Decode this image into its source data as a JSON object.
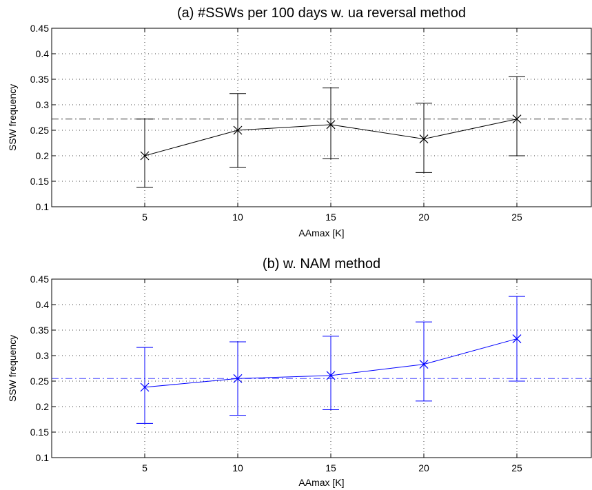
{
  "chart_data": [
    {
      "type": "line",
      "title": "(a) #SSWs per 100 days w. ua reversal method",
      "xlabel": "AAmax [K]",
      "ylabel": "SSW frequency",
      "xlim": [
        0,
        29
      ],
      "ylim": [
        0.1,
        0.45
      ],
      "xticks": [
        5,
        10,
        15,
        20,
        25
      ],
      "yticks": [
        0.1,
        0.15,
        0.2,
        0.25,
        0.3,
        0.35,
        0.4,
        0.45
      ],
      "xtick_labels": [
        "5",
        "10",
        "15",
        "20",
        "25"
      ],
      "ytick_labels": [
        "0.1",
        "0.15",
        "0.2",
        "0.25",
        "0.3",
        "0.35",
        "0.4",
        "0.45"
      ],
      "grid": true,
      "color": "#000000",
      "x": [
        5,
        10,
        15,
        20,
        25
      ],
      "y": [
        0.2,
        0.25,
        0.261,
        0.233,
        0.272
      ],
      "err_low": [
        0.138,
        0.177,
        0.194,
        0.167,
        0.2
      ],
      "err_high": [
        0.272,
        0.322,
        0.333,
        0.303,
        0.355
      ],
      "reference_line": 0.272,
      "marker": "x"
    },
    {
      "type": "line",
      "title": "(b) w. NAM method",
      "xlabel": "AAmax [K]",
      "ylabel": "SSW frequency",
      "xlim": [
        0,
        29
      ],
      "ylim": [
        0.1,
        0.45
      ],
      "xticks": [
        5,
        10,
        15,
        20,
        25
      ],
      "yticks": [
        0.1,
        0.15,
        0.2,
        0.25,
        0.3,
        0.35,
        0.4,
        0.45
      ],
      "xtick_labels": [
        "5",
        "10",
        "15",
        "20",
        "25"
      ],
      "ytick_labels": [
        "0.1",
        "0.15",
        "0.2",
        "0.25",
        "0.3",
        "0.35",
        "0.4",
        "0.45"
      ],
      "grid": true,
      "color": "#0000ff",
      "x": [
        5,
        10,
        15,
        20,
        25
      ],
      "y": [
        0.238,
        0.255,
        0.261,
        0.283,
        0.333
      ],
      "err_low": [
        0.167,
        0.183,
        0.194,
        0.211,
        0.25
      ],
      "err_high": [
        0.316,
        0.327,
        0.338,
        0.366,
        0.416
      ],
      "reference_line": 0.255,
      "marker": "x"
    }
  ]
}
